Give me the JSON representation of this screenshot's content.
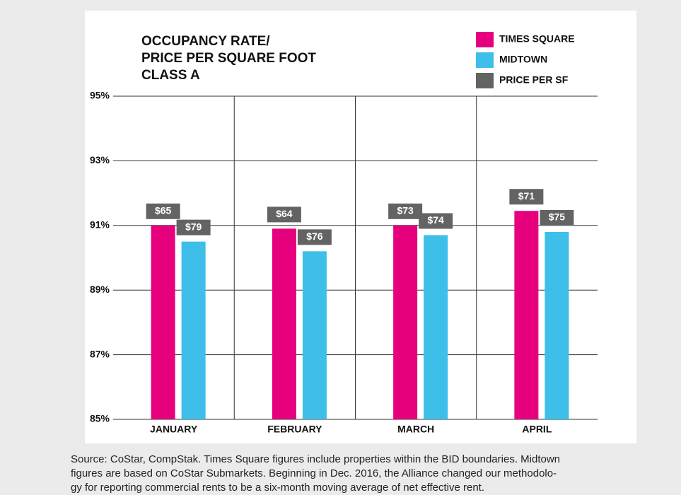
{
  "chart_data": {
    "type": "bar",
    "title_lines": [
      "OCCUPANCY RATE/",
      "PRICE PER SQUARE FOOT",
      "CLASS A"
    ],
    "categories": [
      "JANUARY",
      "FEBRUARY",
      "MARCH",
      "APRIL"
    ],
    "series": [
      {
        "name": "TIMES SQUARE",
        "color": "#e6007e",
        "values": [
          91.0,
          90.9,
          91.0,
          91.45
        ],
        "price_values": [
          65,
          64,
          73,
          71
        ],
        "price_labels": [
          "$65",
          "$64",
          "$73",
          "$71"
        ]
      },
      {
        "name": "MIDTOWN",
        "color": "#3dbfea",
        "values": [
          90.5,
          90.2,
          90.7,
          90.8
        ],
        "price_values": [
          79,
          76,
          74,
          75
        ],
        "price_labels": [
          "$79",
          "$76",
          "$74",
          "$75"
        ]
      }
    ],
    "price_legend": {
      "name": "PRICE PER SF",
      "color": "#636363"
    },
    "ylim": [
      85,
      95
    ],
    "yticks": [
      {
        "value": 85,
        "label": "85%"
      },
      {
        "value": 87,
        "label": "87%"
      },
      {
        "value": 89,
        "label": "89%"
      },
      {
        "value": 91,
        "label": "91%"
      },
      {
        "value": 93,
        "label": "93%"
      },
      {
        "value": 95,
        "label": "95%"
      }
    ],
    "grid": true,
    "source_lines": [
      "Source: CoStar, CompStak. Times Square figures include properties within the BID boundaries. Midtown",
      "figures are based on CoStar Submarkets. Beginning in Dec. 2016, the Alliance changed our methodolo-",
      "gy for reporting commercial rents to be a six-month moving average of net effective rent."
    ]
  }
}
